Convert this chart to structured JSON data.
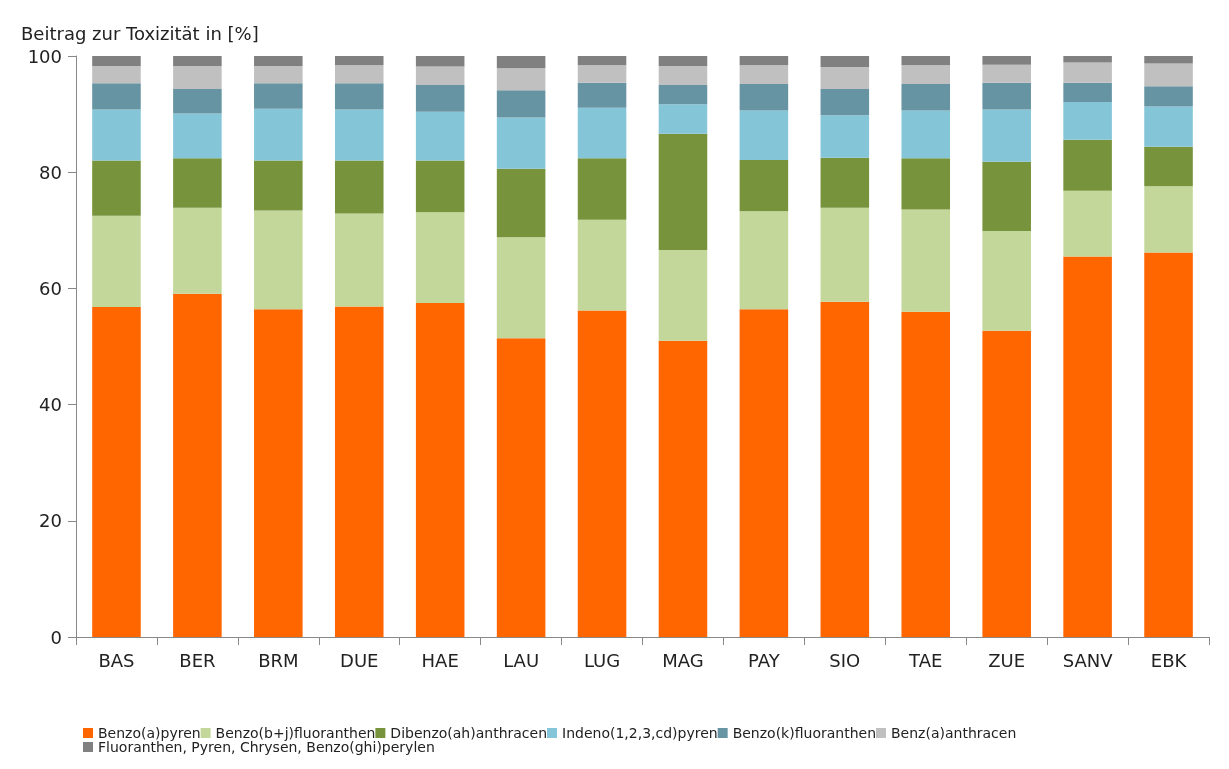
{
  "chart_data": {
    "type": "bar",
    "stacked": true,
    "ylabel": "Beitrag zur Toxizität in [%]",
    "categories": [
      "BAS",
      "BER",
      "BRM",
      "DUE",
      "HAE",
      "LAU",
      "LUG",
      "MAG",
      "PAY",
      "SIO",
      "TAE",
      "ZUE",
      "SANV",
      "EBK"
    ],
    "ylim": [
      0,
      100
    ],
    "yticks": [
      0,
      20,
      40,
      60,
      80,
      100
    ],
    "grid": false,
    "legend": "bottom",
    "series": [
      {
        "name": "Benzo(a)pyren",
        "color": "#ff6600",
        "values": [
          56.8,
          59.1,
          56.4,
          56.9,
          57.5,
          51.4,
          56.2,
          51.0,
          56.4,
          57.7,
          56.0,
          52.7,
          65.5,
          66.2
        ]
      },
      {
        "name": "Benzo(b+j)fluoranthen",
        "color": "#c4d79b",
        "values": [
          15.7,
          14.8,
          17.0,
          16.0,
          15.6,
          17.4,
          15.6,
          15.6,
          16.9,
          16.2,
          17.6,
          17.2,
          11.3,
          11.4
        ]
      },
      {
        "name": "Dibenzo(ah)anthracen",
        "color": "#77933c",
        "values": [
          9.5,
          8.5,
          8.6,
          9.1,
          8.9,
          11.8,
          10.6,
          20.0,
          8.8,
          8.6,
          8.8,
          11.9,
          8.8,
          6.8
        ]
      },
      {
        "name": "Indeno(1,2,3,cd)pyren",
        "color": "#84c5d8",
        "values": [
          8.8,
          7.7,
          8.9,
          8.8,
          8.4,
          8.8,
          8.7,
          5.1,
          8.5,
          7.3,
          8.2,
          9.0,
          6.5,
          6.9
        ]
      },
      {
        "name": "Benzo(k)fluoranthen",
        "color": "#6794a2",
        "values": [
          4.5,
          4.2,
          4.4,
          4.5,
          4.6,
          4.7,
          4.3,
          3.3,
          4.6,
          4.5,
          4.6,
          4.6,
          3.3,
          3.5
        ]
      },
      {
        "name": "Benz(a)anthracen",
        "color": "#c0c0c0",
        "values": [
          3.0,
          4.0,
          3.0,
          3.1,
          3.2,
          3.8,
          3.0,
          3.3,
          3.2,
          3.8,
          3.2,
          3.1,
          3.5,
          3.9
        ]
      },
      {
        "name": "Fluoranthen, Pyren, Chrysen, Benzo(ghi)perylen",
        "color": "#808080",
        "values": [
          1.7,
          1.7,
          1.7,
          1.6,
          1.8,
          2.1,
          1.6,
          1.7,
          1.6,
          1.9,
          1.6,
          1.5,
          1.1,
          1.3
        ]
      }
    ]
  }
}
